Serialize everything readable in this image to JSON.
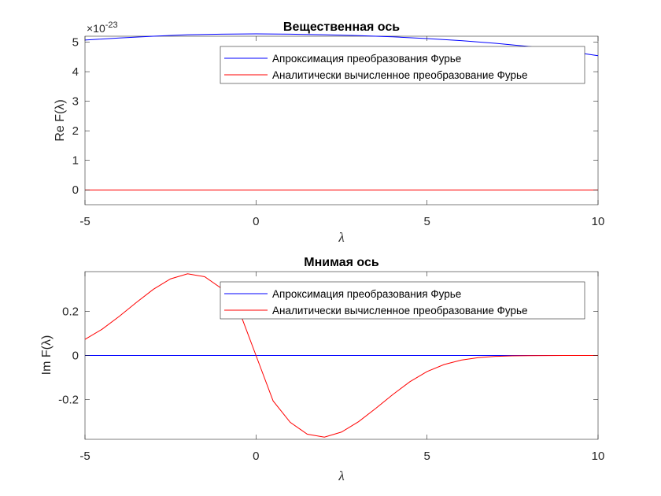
{
  "chart_data": [
    {
      "type": "line",
      "title": "Вещественная ось",
      "xlabel": "λ",
      "ylabel": "Re F(λ)",
      "xlim": [
        -5,
        10
      ],
      "ylim": [
        -0.5,
        5.2
      ],
      "y_multiplier": "×10^-23",
      "y_multiplier_base": "×10",
      "y_multiplier_exp": "-23",
      "xticks": [
        -5,
        0,
        5,
        10
      ],
      "xtick_labels": [
        "-5",
        "0",
        "5",
        "10"
      ],
      "yticks": [
        0,
        1,
        2,
        3,
        4,
        5
      ],
      "ytick_labels": [
        "0",
        "1",
        "2",
        "3",
        "4",
        "5"
      ],
      "legend_position": "top-right",
      "series": [
        {
          "name": "Апроксимация преобразования Фурье",
          "color": "#0000ff",
          "x": [
            -5,
            -4,
            -3,
            -2,
            -1,
            0,
            1,
            2,
            3,
            4,
            5,
            6,
            7,
            8,
            9,
            10
          ],
          "y": [
            5.07,
            5.14,
            5.2,
            5.25,
            5.27,
            5.28,
            5.27,
            5.25,
            5.22,
            5.18,
            5.12,
            5.05,
            4.96,
            4.85,
            4.71,
            4.54
          ]
        },
        {
          "name": "Аналитически вычисленное преобразование Фурье",
          "color": "#ff0000",
          "x": [
            -5,
            10
          ],
          "y": [
            0,
            0
          ]
        }
      ]
    },
    {
      "type": "line",
      "title": "Мнимая ось",
      "xlabel": "λ",
      "ylabel": "Im F(λ)",
      "xlim": [
        -5,
        10
      ],
      "ylim": [
        -0.38,
        0.38
      ],
      "xticks": [
        -5,
        0,
        5,
        10
      ],
      "xtick_labels": [
        "-5",
        "0",
        "5",
        "10"
      ],
      "yticks": [
        -0.2,
        0,
        0.2
      ],
      "ytick_labels": [
        "-0.2",
        "0",
        "0.2"
      ],
      "legend_position": "top-right",
      "series": [
        {
          "name": "Апроксимация преобразования Фурье",
          "color": "#0000ff",
          "x": [
            -5,
            10
          ],
          "y": [
            0,
            0
          ]
        },
        {
          "name": "Аналитически вычисленное преобразование Фурье",
          "color": "#ff0000",
          "x": [
            -5,
            -4.5,
            -4,
            -3.5,
            -3,
            -2.5,
            -2,
            -1.5,
            -1,
            -0.5,
            0,
            0.5,
            1,
            1.5,
            2,
            2.5,
            3,
            3.5,
            4,
            4.5,
            5,
            5.5,
            6,
            6.5,
            7,
            7.5,
            8,
            9,
            10
          ],
          "y": [
            0.073,
            0.119,
            0.177,
            0.24,
            0.3,
            0.347,
            0.37,
            0.357,
            0.303,
            0.206,
            0,
            -0.206,
            -0.303,
            -0.357,
            -0.37,
            -0.347,
            -0.3,
            -0.24,
            -0.177,
            -0.119,
            -0.073,
            -0.041,
            -0.021,
            -0.01,
            -0.004,
            -0.002,
            -0.001,
            0,
            0
          ]
        }
      ]
    }
  ]
}
